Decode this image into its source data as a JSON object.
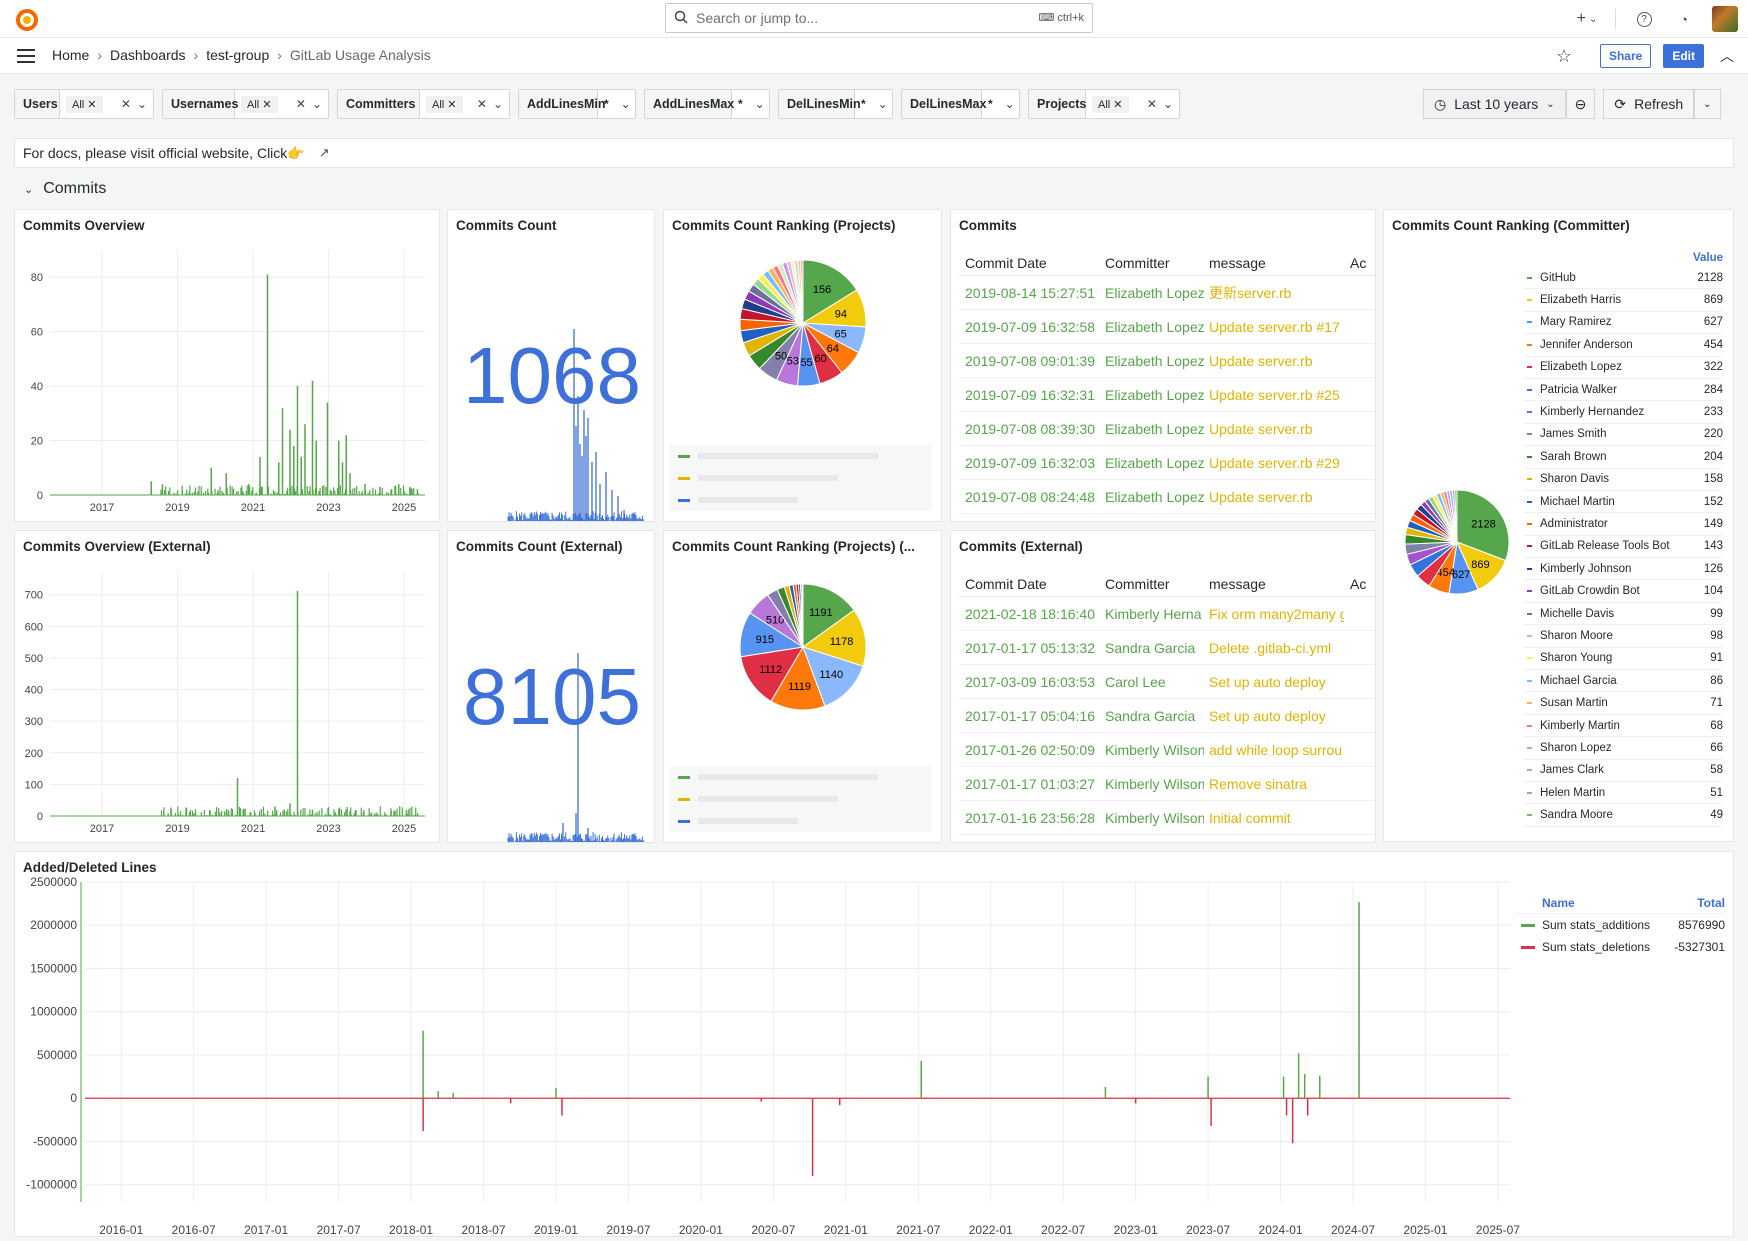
{
  "topbar": {
    "search_placeholder": "Search or jump to...",
    "search_shortcut": "ctrl+k"
  },
  "breadcrumb": [
    "Home",
    "Dashboards",
    "test-group",
    "GitLab Usage Analysis"
  ],
  "nav": {
    "share_label": "Share",
    "edit_label": "Edit"
  },
  "filters": [
    {
      "label": "Users",
      "value": "All",
      "chip": true
    },
    {
      "label": "Usernames",
      "value": "All",
      "chip": true
    },
    {
      "label": "Committers",
      "value": "All",
      "chip": true
    },
    {
      "label": "AddLinesMin",
      "value": "*",
      "chip": false
    },
    {
      "label": "AddLinesMax",
      "value": "*",
      "chip": false
    },
    {
      "label": "DelLinesMin",
      "value": "*",
      "chip": false
    },
    {
      "label": "DelLinesMax",
      "value": "*",
      "chip": false
    },
    {
      "label": "Projects",
      "value": "All",
      "chip": true
    }
  ],
  "time": {
    "range": "Last 10 years",
    "refresh": "Refresh"
  },
  "docs_text": "For docs, please visit official website, Click👉",
  "row_title": "Commits",
  "panels": {
    "overview": {
      "title": "Commits Overview",
      "yticks": [
        "80",
        "60",
        "40",
        "20",
        "0"
      ],
      "xticks": [
        "2017",
        "2019",
        "2021",
        "2023",
        "2025"
      ]
    },
    "count": {
      "title": "Commits Count",
      "value": "1068"
    },
    "ranking_projects": {
      "title": "Commits Count Ranking (Projects)"
    },
    "commits": {
      "title": "Commits"
    },
    "ranking_committer": {
      "title": "Commits Count Ranking (Committer)"
    },
    "overview_ext": {
      "title": "Commits Overview (External)",
      "yticks": [
        "700",
        "600",
        "500",
        "400",
        "300",
        "200",
        "100",
        "0"
      ],
      "xticks": [
        "2017",
        "2019",
        "2021",
        "2023",
        "2025"
      ]
    },
    "count_ext": {
      "title": "Commits Count (External)",
      "value": "8105"
    },
    "ranking_projects_ext": {
      "title": "Commits Count Ranking (Projects) (..."
    },
    "commits_ext": {
      "title": "Commits (External)"
    },
    "lines": {
      "title": "Added/Deleted Lines"
    }
  },
  "table_headers": [
    "Commit Date",
    "Committer",
    "message",
    "Ac"
  ],
  "commits_rows": [
    [
      "2019-08-14 15:27:51",
      "Elizabeth Lopez",
      "更新server.rb"
    ],
    [
      "2019-07-09 16:32:58",
      "Elizabeth Lopez",
      "Update server.rb #17"
    ],
    [
      "2019-07-08 09:01:39",
      "Elizabeth Lopez",
      "Update server.rb"
    ],
    [
      "2019-07-09 16:32:31",
      "Elizabeth Lopez",
      "Update server.rb #25"
    ],
    [
      "2019-07-08 08:39:30",
      "Elizabeth Lopez",
      "Update server.rb"
    ],
    [
      "2019-07-09 16:32:03",
      "Elizabeth Lopez",
      "Update server.rb #29"
    ],
    [
      "2019-07-08 08:24:48",
      "Elizabeth Lopez",
      "Update server.rb"
    ]
  ],
  "commits_ext_rows": [
    [
      "2021-02-18 18:16:40",
      "Kimberly Herna",
      "Fix orm many2many g"
    ],
    [
      "2017-01-17 05:13:32",
      "Sandra Garcia",
      "Delete .gitlab-ci.yml"
    ],
    [
      "2017-03-09 16:03:53",
      "Carol Lee",
      "Set up auto deploy"
    ],
    [
      "2017-01-17 05:04:16",
      "Sandra Garcia",
      "Set up auto deploy"
    ],
    [
      "2017-01-26 02:50:09",
      "Kimberly Wilson",
      "add while loop surrou"
    ],
    [
      "2017-01-17 01:03:27",
      "Kimberly Wilson",
      "Remove sinatra"
    ],
    [
      "2017-01-16 23:56:28",
      "Kimberly Wilson",
      "Initial commit"
    ]
  ],
  "committer_legend_header": "Value",
  "committers": [
    {
      "name": "GitHub",
      "value": "2128",
      "color": "#56a64b"
    },
    {
      "name": "Elizabeth Harris",
      "value": "869",
      "color": "#f2cc0c"
    },
    {
      "name": "Mary Ramirez",
      "value": "627",
      "color": "#5794f2"
    },
    {
      "name": "Jennifer Anderson",
      "value": "454",
      "color": "#ff780a"
    },
    {
      "name": "Elizabeth Lopez",
      "value": "322",
      "color": "#e02f44"
    },
    {
      "name": "Patricia Walker",
      "value": "284",
      "color": "#3274d9"
    },
    {
      "name": "Kimberly Hernandez",
      "value": "233",
      "color": "#a352cc"
    },
    {
      "name": "James Smith",
      "value": "220",
      "color": "#8080aa"
    },
    {
      "name": "Sarah Brown",
      "value": "204",
      "color": "#37872d"
    },
    {
      "name": "Sharon Davis",
      "value": "158",
      "color": "#e0b400"
    },
    {
      "name": "Michael Martin",
      "value": "152",
      "color": "#1f60c4"
    },
    {
      "name": "Administrator",
      "value": "149",
      "color": "#fa6400"
    },
    {
      "name": "GitLab Release Tools Bot",
      "value": "143",
      "color": "#c4162a"
    },
    {
      "name": "Kimberly Johnson",
      "value": "126",
      "color": "#1f3f8c"
    },
    {
      "name": "GitLab Crowdin Bot",
      "value": "104",
      "color": "#8f3bb8"
    },
    {
      "name": "Michelle Davis",
      "value": "99",
      "color": "#6e6e9e"
    },
    {
      "name": "Sharon Moore",
      "value": "98",
      "color": "#96d98d"
    },
    {
      "name": "Sharon Young",
      "value": "91",
      "color": "#ffee52"
    },
    {
      "name": "Michael Garcia",
      "value": "86",
      "color": "#73bfff"
    },
    {
      "name": "Susan Martin",
      "value": "71",
      "color": "#ffb357"
    },
    {
      "name": "Kimberly Martin",
      "value": "68",
      "color": "#ff7383"
    },
    {
      "name": "Sharon Lopez",
      "value": "66",
      "color": "#8ab8ff"
    },
    {
      "name": "James Clark",
      "value": "58",
      "color": "#ca95e5"
    },
    {
      "name": "Helen Martin",
      "value": "51",
      "color": "#a3a3cc"
    },
    {
      "name": "Sandra Moore",
      "value": "49",
      "color": "#73bf69"
    }
  ],
  "pie_projects_labels": [
    "156",
    "94",
    "65",
    "64",
    "60",
    "55",
    "53",
    "50"
  ],
  "pie_projects_ext_labels": [
    "1191",
    "1178",
    "1140",
    "1119",
    "1112",
    "915",
    "510"
  ],
  "pie_committer_labels": [
    "2128",
    "869",
    "627",
    "454"
  ],
  "lines_legend": {
    "headers": [
      "Name",
      "Total"
    ],
    "rows": [
      {
        "name": "Sum stats_additions",
        "total": "8576990",
        "color": "#56a64b"
      },
      {
        "name": "Sum stats_deletions",
        "total": "-5327301",
        "color": "#e02f44"
      }
    ]
  },
  "chart_data": {
    "type": "bar",
    "title": "Added/Deleted Lines",
    "yticks": [
      "2500000",
      "2000000",
      "1500000",
      "1000000",
      "500000",
      "0",
      "-500000",
      "-1000000"
    ],
    "xticks": [
      "2016-01",
      "2016-07",
      "2017-01",
      "2017-07",
      "2018-01",
      "2018-07",
      "2019-01",
      "2019-07",
      "2020-01",
      "2020-07",
      "2021-01",
      "2021-07",
      "2022-01",
      "2022-07",
      "2023-01",
      "2023-07",
      "2024-01",
      "2024-07",
      "2025-01",
      "2025-07"
    ],
    "ylim": [
      -1200000,
      2500000
    ],
    "series": [
      {
        "name": "Sum stats_additions",
        "color": "#56a64b",
        "points": [
          [
            "2018-02",
            780000
          ],
          [
            "2018-03",
            80000
          ],
          [
            "2018-04",
            60000
          ],
          [
            "2019-01",
            120000
          ],
          [
            "2021-07",
            430000
          ],
          [
            "2022-10",
            130000
          ],
          [
            "2023-07",
            250000
          ],
          [
            "2024-01",
            250000
          ],
          [
            "2024-02",
            520000
          ],
          [
            "2024-03",
            280000
          ],
          [
            "2024-04",
            260000
          ],
          [
            "2024-07",
            2270000
          ]
        ]
      },
      {
        "name": "Sum stats_deletions",
        "color": "#e02f44",
        "points": [
          [
            "2018-02",
            -380000
          ],
          [
            "2018-09",
            -60000
          ],
          [
            "2019-01",
            -200000
          ],
          [
            "2020-06",
            -40000
          ],
          [
            "2020-10",
            -900000
          ],
          [
            "2020-12",
            -80000
          ],
          [
            "2023-01",
            -60000
          ],
          [
            "2023-07",
            -320000
          ],
          [
            "2024-01",
            -200000
          ],
          [
            "2024-02",
            -520000
          ],
          [
            "2024-03",
            -200000
          ]
        ]
      }
    ]
  }
}
